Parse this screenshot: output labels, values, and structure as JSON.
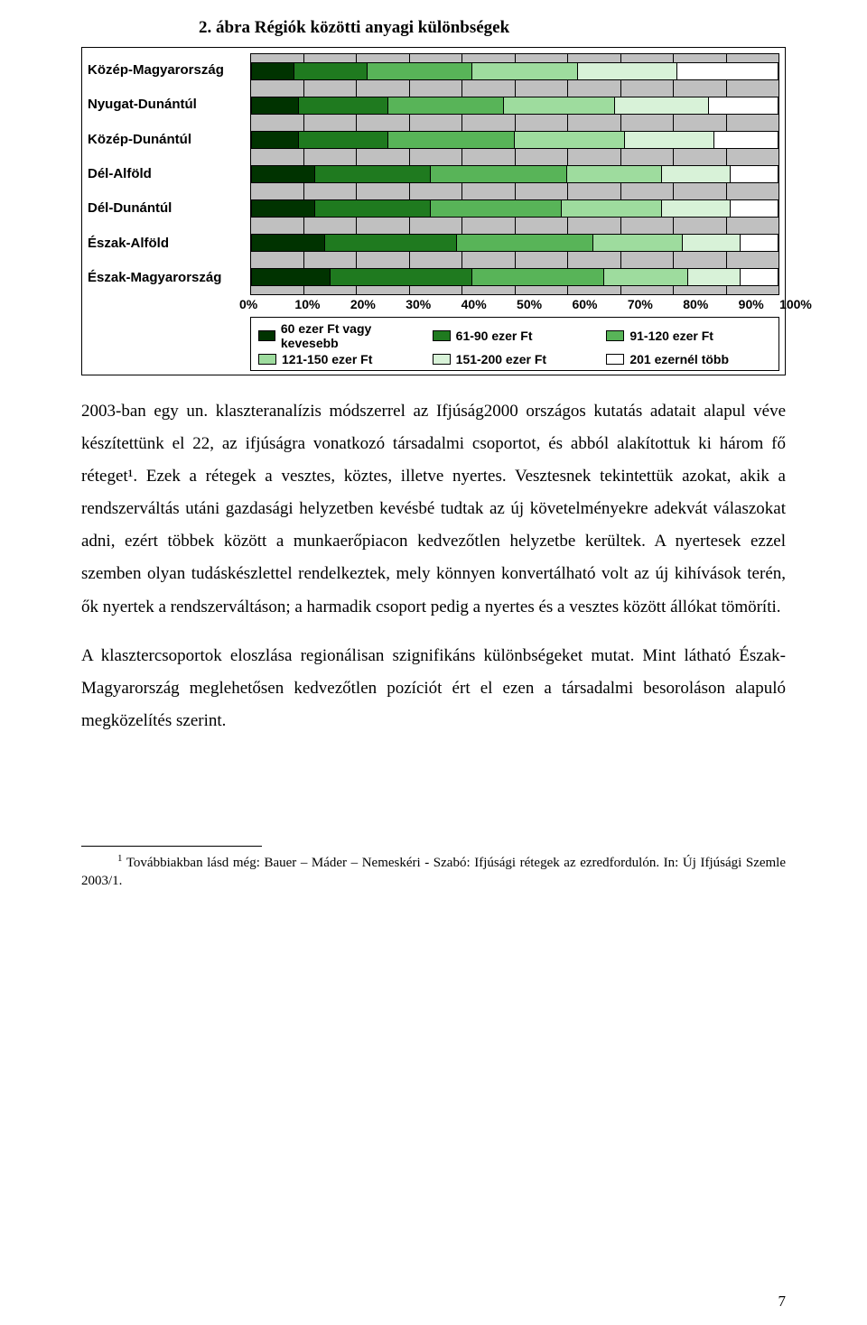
{
  "chart": {
    "title": "2. ábra    Régiók közötti anyagi különbségek",
    "type": "stacked-bar-horizontal-100pct",
    "background_color": "#c0c0c0",
    "grid_color": "#000000",
    "categories": [
      "Közép-Magyarország",
      "Nyugat-Dunántúl",
      "Közép-Dunántúl",
      "Dél-Alföld",
      "Dél-Dunántúl",
      "Észak-Alföld",
      "Észak-Magyarország"
    ],
    "x_ticks": [
      "0%",
      "10%",
      "20%",
      "30%",
      "40%",
      "50%",
      "60%",
      "70%",
      "80%",
      "90%",
      "100%"
    ],
    "series": [
      {
        "label": "60 ezer Ft vagy kevesebb",
        "color": "#003300"
      },
      {
        "label": "61-90 ezer Ft",
        "color": "#1f7a1f"
      },
      {
        "label": "91-120 ezer Ft",
        "color": "#58b458"
      },
      {
        "label": "121-150 ezer Ft",
        "color": "#9edc9e"
      },
      {
        "label": "151-200 ezer Ft",
        "color": "#d8f2d8"
      },
      {
        "label": "201 ezernél több",
        "color": "#ffffff"
      }
    ],
    "values": [
      [
        8,
        14,
        20,
        20,
        19,
        19
      ],
      [
        9,
        17,
        22,
        21,
        18,
        13
      ],
      [
        9,
        17,
        24,
        21,
        17,
        12
      ],
      [
        12,
        22,
        26,
        18,
        13,
        9
      ],
      [
        12,
        22,
        25,
        19,
        13,
        9
      ],
      [
        14,
        25,
        26,
        17,
        11,
        7
      ],
      [
        15,
        27,
        25,
        16,
        10,
        7
      ]
    ],
    "label_fontsize": 15,
    "tick_fontsize": 14
  },
  "paragraphs": {
    "p1": "2003-ban egy un. klaszteranalízis módszerrel az Ifjúság2000 országos kutatás adatait alapul véve készítettünk el 22, az ifjúságra vonatkozó társadalmi csoportot, és abból alakítottuk ki három fő réteget¹. Ezek a rétegek a vesztes, köztes, illetve nyertes. Vesztesnek tekintettük azokat, akik a rendszerváltás utáni gazdasági helyzetben kevésbé tudtak az új követelményekre adekvát válaszokat adni, ezért többek között a munkaerőpiacon kedvezőtlen helyzetbe kerültek. A nyertesek ezzel szemben olyan tudáskészlettel rendelkeztek, mely könnyen konvertálható volt az új kihívások terén, ők nyertek a rendszerváltáson; a harmadik csoport pedig a nyertes és a vesztes között állókat tömöríti.",
    "p2": "A klasztercsoportok eloszlása regionálisan szignifikáns különbségeket mutat. Mint látható Észak-Magyarország meglehetősen kedvezőtlen pozíciót ért el ezen a társadalmi besoroláson alapuló megközelítés szerint."
  },
  "footnote": {
    "marker": "1",
    "text": "Továbbiakban lásd még: Bauer – Máder – Nemeskéri - Szabó: Ifjúsági rétegek az ezredfordulón. In: Új Ifjúsági Szemle 2003/1."
  },
  "page_number": "7"
}
